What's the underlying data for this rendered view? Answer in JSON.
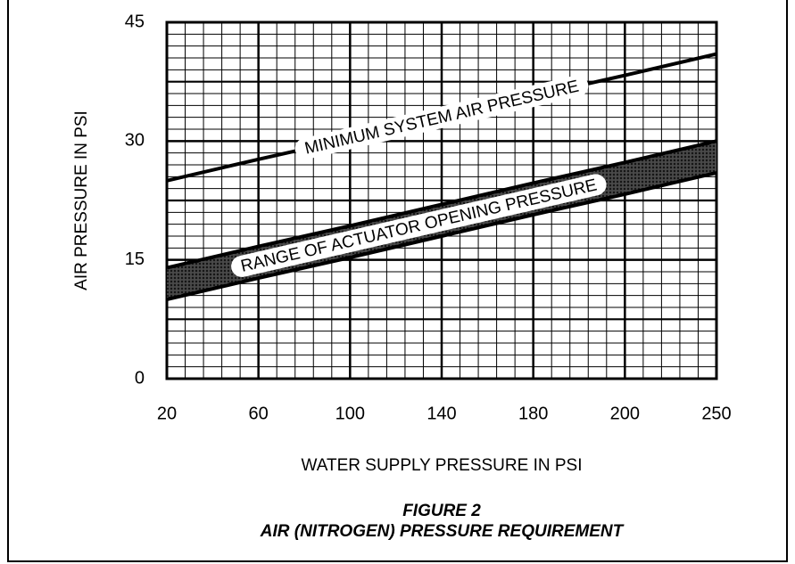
{
  "chart_data": {
    "type": "line",
    "caption": [
      "FIGURE 2",
      "AIR (NITROGEN) PRESSURE REQUIREMENT"
    ],
    "x_label": "WATER SUPPLY PRESSURE IN PSI",
    "y_label": "AIR PRESSURE IN PSI",
    "categories": [
      "20",
      "60",
      "100",
      "140",
      "180",
      "200",
      "250"
    ],
    "ylim": [
      0,
      45
    ],
    "yticks": [
      0,
      15,
      30,
      45
    ],
    "grid": true,
    "series": [
      {
        "name": "MINIMUM SYSTEM AIR PRESSURE",
        "color": "#000000",
        "values": [
          25,
          27.7,
          30.3,
          33,
          35.7,
          38.3,
          41
        ]
      }
    ],
    "band": {
      "name": "RANGE OF ACTUATOR OPENING PRESSURE",
      "color": "#000000",
      "lower": [
        10,
        12.7,
        15.3,
        18,
        20.7,
        23.3,
        26
      ],
      "upper": [
        14,
        16.7,
        19.3,
        22,
        24.7,
        27.3,
        30
      ]
    }
  }
}
